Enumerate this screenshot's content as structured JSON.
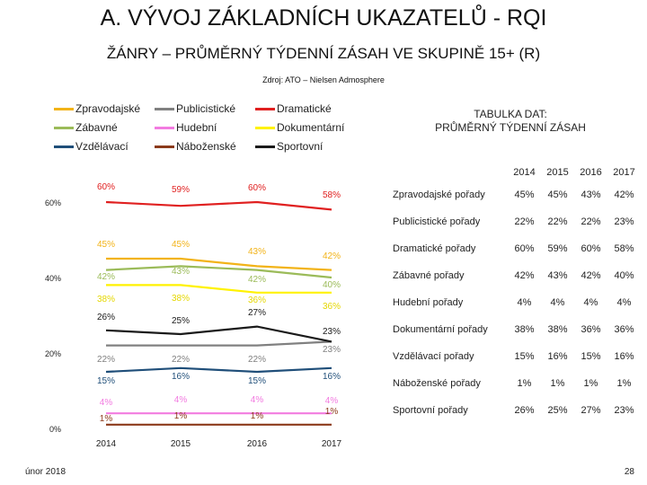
{
  "header": {
    "title": "A. VÝVOJ ZÁKLADNÍCH UKAZATELŮ - RQI",
    "subtitle": "ŽÁNRY – PRŮMĚRNÝ TÝDENNÍ ZÁSAH VE SKUPINĚ 15+ (R)",
    "source": "Zdroj: ATO – Nielsen Admosphere"
  },
  "table": {
    "title_line1": "TABULKA DAT:",
    "title_line2": "PRŮMĚRNÝ TÝDENNÍ ZÁSAH",
    "years": [
      "2014",
      "2015",
      "2016",
      "2017"
    ],
    "rows": [
      {
        "label": "Zpravodajské pořady",
        "values": [
          "45%",
          "45%",
          "43%",
          "42%"
        ]
      },
      {
        "label": "Publicistické pořady",
        "values": [
          "22%",
          "22%",
          "22%",
          "23%"
        ]
      },
      {
        "label": "Dramatické pořady",
        "values": [
          "60%",
          "59%",
          "60%",
          "58%"
        ]
      },
      {
        "label": "Zábavné pořady",
        "values": [
          "42%",
          "43%",
          "42%",
          "40%"
        ]
      },
      {
        "label": "Hudební pořady",
        "values": [
          "4%",
          "4%",
          "4%",
          "4%"
        ]
      },
      {
        "label": "Dokumentární pořady",
        "values": [
          "38%",
          "38%",
          "36%",
          "36%"
        ]
      },
      {
        "label": "Vzdělávací pořady",
        "values": [
          "15%",
          "16%",
          "15%",
          "16%"
        ]
      },
      {
        "label": "Náboženské pořady",
        "values": [
          "1%",
          "1%",
          "1%",
          "1%"
        ]
      },
      {
        "label": "Sportovní pořady",
        "values": [
          "26%",
          "25%",
          "27%",
          "23%"
        ]
      }
    ]
  },
  "footer": {
    "date": "únor 2018",
    "page": "28"
  },
  "chart_data": {
    "type": "line",
    "x": [
      "2014",
      "2015",
      "2016",
      "2017"
    ],
    "ylim": [
      0,
      70
    ],
    "yticks": [
      "0%",
      "20%",
      "40%",
      "60%"
    ],
    "grid": false,
    "legend_position": "top-left",
    "series": [
      {
        "name": "Zpravodajské",
        "color": "#F2B318",
        "values": [
          45,
          45,
          43,
          42
        ]
      },
      {
        "name": "Publicistické",
        "color": "#808080",
        "values": [
          22,
          22,
          22,
          23
        ]
      },
      {
        "name": "Dramatické",
        "color": "#E02020",
        "values": [
          60,
          59,
          60,
          58
        ]
      },
      {
        "name": "Zábavné",
        "color": "#9BBB59",
        "values": [
          42,
          43,
          42,
          40
        ]
      },
      {
        "name": "Hudební",
        "color": "#F27BE0",
        "values": [
          4,
          4,
          4,
          4
        ]
      },
      {
        "name": "Dokumentární",
        "color": "#FFF200",
        "values": [
          38,
          38,
          36,
          36
        ]
      },
      {
        "name": "Vzdělávací",
        "color": "#1F4E79",
        "values": [
          15,
          16,
          15,
          16
        ]
      },
      {
        "name": "Náboženské",
        "color": "#8B3A1A",
        "values": [
          1,
          1,
          1,
          1
        ]
      },
      {
        "name": "Sportovní",
        "color": "#1A1A1A",
        "values": [
          26,
          25,
          27,
          23
        ]
      }
    ],
    "data_labels": [
      [
        "60%",
        "59%",
        "60%",
        "58%"
      ],
      [
        "45%",
        "45%",
        "43%",
        "42%"
      ],
      [
        "42%",
        "43%",
        "42%",
        "40%"
      ],
      [
        "38%",
        "38%",
        "36%",
        "36%"
      ],
      [
        "26%",
        "25%",
        "27%",
        "23%"
      ],
      [
        "22%",
        "22%",
        "22%",
        "23%"
      ],
      [
        "15%",
        "16%",
        "15%",
        "16%"
      ],
      [
        "4%",
        "4%",
        "4%",
        "4%"
      ],
      [
        "1%",
        "1%",
        "1%",
        "1%"
      ]
    ]
  }
}
